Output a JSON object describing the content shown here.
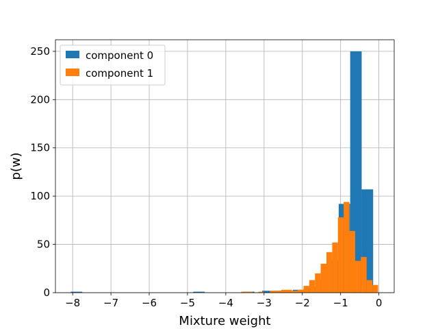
{
  "chart_data": {
    "type": "bar",
    "subtype": "histogram",
    "xlabel": "Mixture weight",
    "ylabel": "p(w)",
    "xlim": [
      -8.45,
      0.4
    ],
    "ylim": [
      0,
      262
    ],
    "xticks": [
      -8,
      -7,
      -6,
      -5,
      -4,
      -3,
      -2,
      -1,
      0
    ],
    "xtick_labels": [
      "−8",
      "−7",
      "−6",
      "−5",
      "−4",
      "−3",
      "−2",
      "−1",
      "0"
    ],
    "yticks": [
      0,
      50,
      100,
      150,
      200,
      250
    ],
    "ytick_labels": [
      "0",
      "50",
      "100",
      "150",
      "200",
      "250"
    ],
    "grid": true,
    "legend": "top-left",
    "series": [
      {
        "name": "component 0",
        "color": "#1f77b4",
        "bins": [
          {
            "x0": -8.05,
            "x1": -7.75,
            "count": 1
          },
          {
            "x0": -4.85,
            "x1": -4.55,
            "count": 1
          },
          {
            "x0": -3.55,
            "x1": -3.25,
            "count": 1
          },
          {
            "x0": -3.05,
            "x1": -2.75,
            "count": 2
          },
          {
            "x0": -2.75,
            "x1": -2.45,
            "count": 2
          },
          {
            "x0": -2.25,
            "x1": -1.95,
            "count": 3
          },
          {
            "x0": -1.95,
            "x1": -1.65,
            "count": 6
          },
          {
            "x0": -1.65,
            "x1": -1.35,
            "count": 14
          },
          {
            "x0": -1.35,
            "x1": -1.05,
            "count": 34
          },
          {
            "x0": -1.05,
            "x1": -0.75,
            "count": 92
          },
          {
            "x0": -0.75,
            "x1": -0.45,
            "count": 250
          },
          {
            "x0": -0.45,
            "x1": -0.15,
            "count": 107
          }
        ]
      },
      {
        "name": "component 1",
        "color": "#ff7f0e",
        "bins": [
          {
            "x0": -3.6,
            "x1": -3.3,
            "count": 1
          },
          {
            "x0": -3.15,
            "x1": -3.0,
            "count": 1
          },
          {
            "x0": -2.85,
            "x1": -2.55,
            "count": 2
          },
          {
            "x0": -2.55,
            "x1": -2.27,
            "count": 3
          },
          {
            "x0": -2.27,
            "x1": -2.12,
            "count": 2
          },
          {
            "x0": -2.12,
            "x1": -1.97,
            "count": 3
          },
          {
            "x0": -1.97,
            "x1": -1.82,
            "count": 7
          },
          {
            "x0": -1.82,
            "x1": -1.67,
            "count": 13
          },
          {
            "x0": -1.67,
            "x1": -1.52,
            "count": 20
          },
          {
            "x0": -1.52,
            "x1": -1.37,
            "count": 30
          },
          {
            "x0": -1.37,
            "x1": -1.22,
            "count": 42
          },
          {
            "x0": -1.22,
            "x1": -1.07,
            "count": 52
          },
          {
            "x0": -1.07,
            "x1": -0.92,
            "count": 78
          },
          {
            "x0": -0.92,
            "x1": -0.77,
            "count": 94
          },
          {
            "x0": -0.77,
            "x1": -0.62,
            "count": 64
          },
          {
            "x0": -0.62,
            "x1": -0.47,
            "count": 33
          },
          {
            "x0": -0.47,
            "x1": -0.32,
            "count": 37
          },
          {
            "x0": -0.32,
            "x1": -0.17,
            "count": 13
          },
          {
            "x0": -0.17,
            "x1": -0.02,
            "count": 8
          }
        ]
      }
    ]
  }
}
